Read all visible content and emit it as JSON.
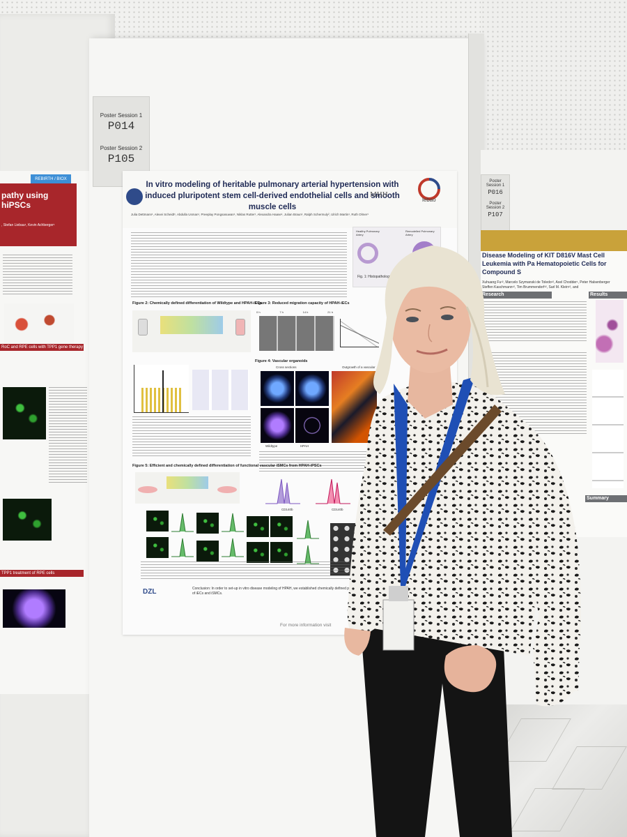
{
  "session_tags": {
    "main": {
      "label1": "Poster Session 1",
      "code1": "P014",
      "label2": "Poster Session 2",
      "code2": "P105"
    },
    "right": {
      "label1": "Poster Session 1",
      "code1": "P016",
      "label2": "Poster Session 2",
      "code2": "P107"
    }
  },
  "main_poster": {
    "title": "In vitro modeling of heritable pulmonary arterial hypertension with induced pluripotent stem cell-derived endothelial cells and smooth muscle cells",
    "authors": "Julia Dettmann¹, Alexei Scheidt¹, Abdulla Usman¹, Preeplay Pongsasuwan¹, Niklas Rutter¹, Alexandra Haase¹, Julian Braun¹, Ralph Schermuly², Ulrich Martin¹, Ruth Olmer¹",
    "logo_mhh": "MHH",
    "logo_mhh_sub": "Hannover Medical School",
    "logo_lebao": "lebao",
    "fig2_title": "Figure 2: Chemically defined differentiation of Wildtype and HPAH-iECs",
    "fig3_title": "Figure 3: Reduced migration capacity of HPAH-iECs",
    "fig4_title": "Figure 4: Vascular organoids",
    "fig5_title": "Figure 5: Efficient and chemically defined differentiation of functional vascular iSMCs from HPAH-iPSCs",
    "fig1_caption": "Fig. 1: Histopathology",
    "healthy_label": "Healthy Pulmonary Artery",
    "remodelled_label": "Remodelled Pulmonary Artery",
    "fig4_cross": "Cross sections",
    "fig4_outgrowth": "Outgrowth of a vascular",
    "fig4_wt": "Wildtype",
    "fig4_hpah": "HPAH",
    "actin_label": "ACTA2",
    "fig3_times": [
      "0 h",
      "7 h",
      "14 h",
      "21 h"
    ],
    "fig5_cd": [
      "CD140b",
      "CD140b"
    ],
    "conclusion": "Conclusion: In order to set-up in vitro disease modeling of HPAH, we established chemically defined protocols for the differentiation of iECs and iSMCs.",
    "footer": "For more information visit",
    "sign_dzl": "DZL"
  },
  "left_poster": {
    "badge": "REBIRTH / BIOX",
    "title": "pathy using hiPSCs",
    "subtitle": ", Stefan Liebau¹, Kevin Achberger¹",
    "bar1": "RoC and RPE cells with TPP1 gene therapy",
    "bar2": "TPP1 treatment of RPE cells"
  },
  "right_poster": {
    "title": "Disease Modeling of KIT D816V Mast Cell Leukemia with Pa Hematopoietic Cells for Compound S",
    "authors": "Xuhuang Fu¹², Marcelo Szymanski de Toledo¹², Axel Chodder¹, Peter Halsenberger Steffen Kaschmann¹², Tim Brummendorf¹², Sarl M. Klein¹², and",
    "sec_research": "Research",
    "sec_results": "Results",
    "sec_summary": "Summary"
  },
  "colors": {
    "poster_title_blue": "#1f2a55",
    "left_red": "#a8262b",
    "right_gold": "#c9a23a",
    "lanyard_blue": "#1f4fb5"
  }
}
